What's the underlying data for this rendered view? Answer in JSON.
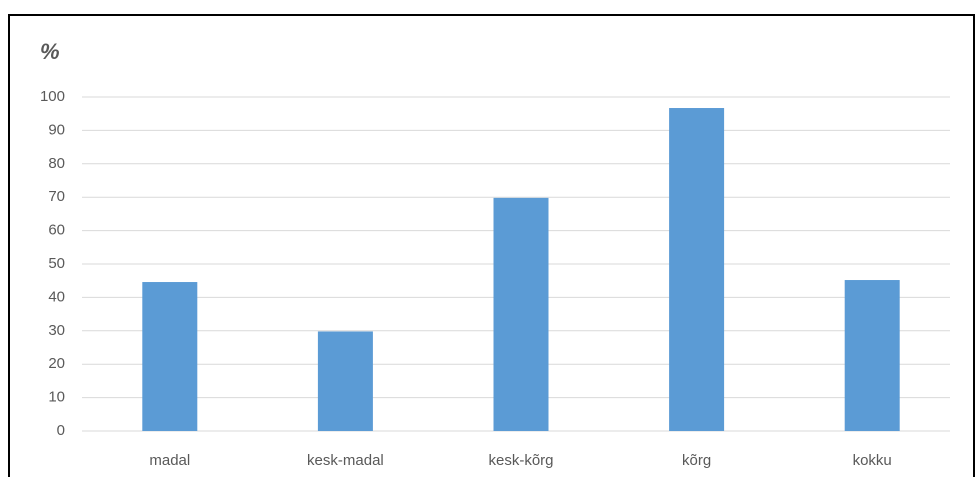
{
  "chart_data": {
    "type": "bar",
    "y_label": "%",
    "categories": [
      "madal",
      "kesk-madal",
      "kesk-kõrg",
      "kõrg",
      "kokku"
    ],
    "values": [
      44.6,
      29.8,
      69.8,
      96.7,
      45.2
    ],
    "color": "#5b9bd5",
    "ylim": [
      0,
      100
    ],
    "yticks": [
      0,
      10,
      20,
      30,
      40,
      50,
      60,
      70,
      80,
      90,
      100
    ],
    "grid": true
  }
}
